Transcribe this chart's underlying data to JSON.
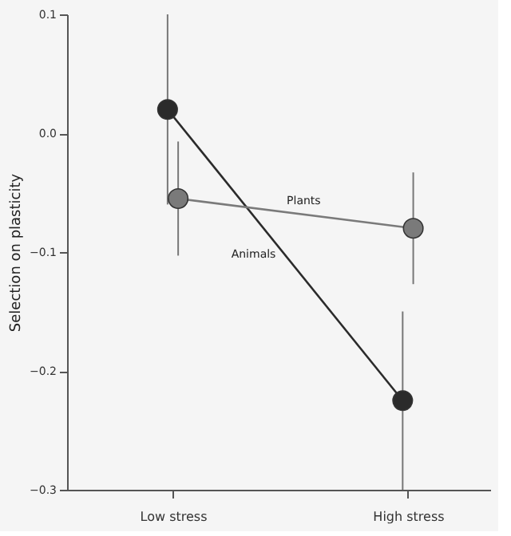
{
  "chart_data": {
    "type": "line",
    "ylabel": "Selection on plasticity",
    "categories": [
      "Low stress",
      "High stress"
    ],
    "series": [
      {
        "name": "Animals",
        "color": "#2b2b2b",
        "values": [
          0.02,
          -0.225
        ],
        "errors": [
          0.08,
          0.075
        ]
      },
      {
        "name": "Plants",
        "color": "#7a7a7a",
        "values": [
          -0.055,
          -0.08
        ],
        "errors": [
          0.048,
          0.047
        ]
      }
    ],
    "ylim": [
      -0.3,
      0.1
    ],
    "yticks": [
      {
        "value": -0.3,
        "label": "−0.3"
      },
      {
        "value": -0.2,
        "label": "−0.2"
      },
      {
        "value": -0.1,
        "label": "−0.1"
      },
      {
        "value": 0.0,
        "label": "0.0"
      },
      {
        "value": 0.1,
        "label": "0.1"
      }
    ],
    "marker": "circle",
    "grid": false,
    "legend": false
  }
}
